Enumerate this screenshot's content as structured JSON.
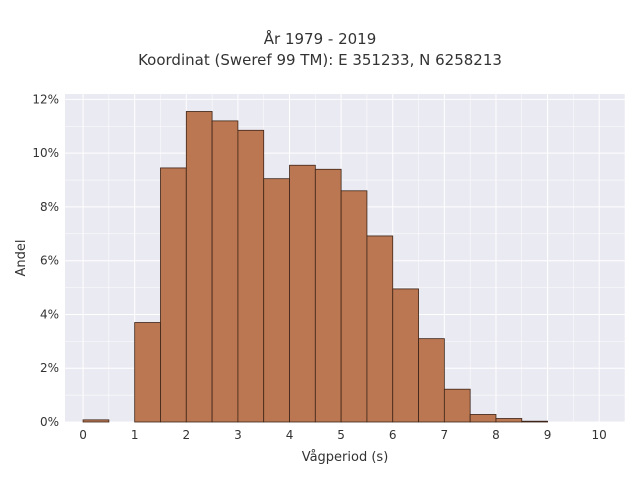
{
  "chart_data": {
    "type": "bar",
    "title_lines": [
      "År 1979 - 2019",
      "Koordinat (Sweref 99 TM): E 351233, N 6258213"
    ],
    "xlabel": "Vågperiod (s)",
    "ylabel": "Andel",
    "bin_width": 0.5,
    "x": [
      0,
      0.5,
      1,
      1.5,
      2,
      2.5,
      3,
      3.5,
      4,
      4.5,
      5,
      5.5,
      6,
      6.5,
      7,
      7.5,
      8,
      8.5,
      9,
      9.5
    ],
    "values": [
      0.08,
      0.0,
      3.7,
      9.45,
      11.55,
      11.2,
      10.85,
      9.05,
      9.55,
      9.4,
      8.6,
      6.92,
      4.95,
      3.1,
      1.22,
      0.28,
      0.13,
      0.03,
      0.0,
      0.0
    ],
    "xlim": [
      -0.35,
      10.5
    ],
    "ylim": [
      0,
      12.2
    ],
    "xticks": [
      0,
      1,
      2,
      3,
      4,
      5,
      6,
      7,
      8,
      9,
      10
    ],
    "yticks": [
      0,
      2,
      4,
      6,
      8,
      10,
      12
    ],
    "ytick_labels": [
      "0%",
      "2%",
      "4%",
      "6%",
      "8%",
      "10%",
      "12%"
    ],
    "grid": true,
    "colors": {
      "bar_fill": "#bb7751",
      "bar_stroke": "#3d2418",
      "plot_bg": "#eaeaf2",
      "grid": "#ffffff",
      "text": "#333333"
    }
  }
}
